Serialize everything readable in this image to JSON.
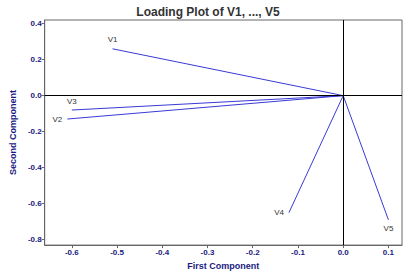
{
  "chart_data": {
    "type": "vector",
    "title": "Loading Plot of V1, ..., V5",
    "xlabel": "First Component",
    "ylabel": "Second Component",
    "color": "#3a3ad6",
    "series": [
      {
        "name": "V1",
        "x": -0.51,
        "y": 0.26
      },
      {
        "name": "V2",
        "x": -0.61,
        "y": -0.13
      },
      {
        "name": "V3",
        "x": -0.6,
        "y": -0.08
      },
      {
        "name": "V4",
        "x": -0.12,
        "y": -0.65
      },
      {
        "name": "V5",
        "x": 0.1,
        "y": -0.69
      }
    ],
    "xlim": [
      -0.66,
      0.13
    ],
    "ylim": [
      -0.83,
      0.42
    ],
    "xticks": [
      -0.6,
      -0.5,
      -0.4,
      -0.3,
      -0.2,
      -0.1,
      {
        "value": 0,
        "label": "0.0"
      },
      0.1
    ],
    "yticks": [
      -0.8,
      -0.6,
      -0.4,
      -0.2,
      {
        "value": 0,
        "label": "0.0"
      },
      0.2,
      0.4
    ]
  }
}
